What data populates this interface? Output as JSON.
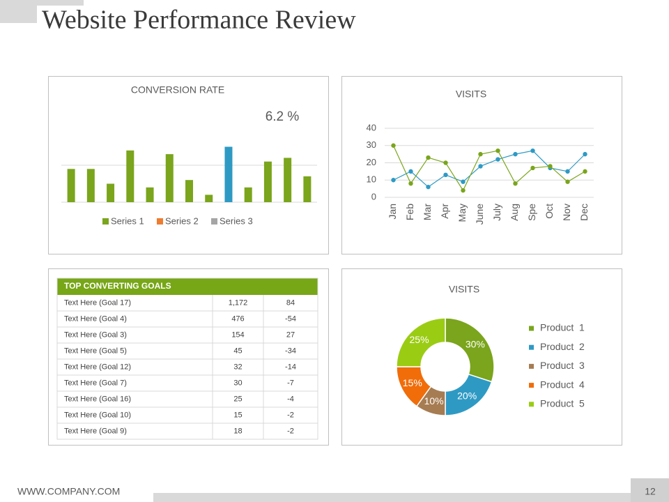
{
  "title": "Website Performance Review",
  "footer": {
    "website": "WWW.COMPANY.COM",
    "page": "12"
  },
  "chart_data": [
    {
      "type": "bar",
      "title": "CONVERSION RATE",
      "annotation": "6.2 %",
      "categories": [
        null,
        null,
        null,
        null,
        null,
        null,
        null,
        null,
        null,
        null,
        null,
        null,
        null
      ],
      "series": [
        {
          "name": "Series 1",
          "color": "#7aa51c",
          "values": [
            4.5,
            4.5,
            2.5,
            7,
            2,
            6.5,
            3,
            1,
            7.5,
            2,
            5.5,
            6,
            3.5
          ],
          "point_colors": [
            "#7aa51c",
            "#7aa51c",
            "#7aa51c",
            "#7aa51c",
            "#7aa51c",
            "#7aa51c",
            "#7aa51c",
            "#7aa51c",
            "#2e9ac4",
            "#7aa51c",
            "#7aa51c",
            "#7aa51c",
            "#7aa51c"
          ]
        },
        {
          "name": "Series 2",
          "color": "#ed7d31",
          "values": [
            null,
            null,
            null,
            null,
            null,
            null,
            null,
            null,
            null,
            null,
            null,
            null,
            null
          ]
        },
        {
          "name": "Series 3",
          "color": "#a5a5a5",
          "values": [
            null,
            null,
            null,
            null,
            null,
            null,
            null,
            null,
            null,
            null,
            null,
            null,
            null
          ]
        }
      ],
      "ylim": [
        0,
        10
      ],
      "grid_lines": [
        0,
        5
      ]
    },
    {
      "type": "line",
      "title": "VISITS",
      "categories": [
        "Jan",
        "Feb",
        "Mar",
        "Apr",
        "May",
        "June",
        "July",
        "Aug",
        "Spe",
        "Oct",
        "Nov",
        "Dec"
      ],
      "series": [
        {
          "color": "#2e9ac4",
          "values": [
            10,
            15,
            6,
            13,
            9,
            18,
            22,
            25,
            27,
            17,
            15,
            25
          ]
        },
        {
          "color": "#7aa51c",
          "values": [
            30,
            8,
            23,
            20,
            4,
            25,
            27,
            8,
            17,
            18,
            9,
            15
          ]
        }
      ],
      "ylim": [
        0,
        40
      ],
      "yticks": [
        0,
        10,
        20,
        30,
        40
      ],
      "grid": true
    },
    {
      "type": "donut",
      "title": "VISITS",
      "categories": [
        "Product  1",
        "Product  2",
        "Product  3",
        "Product  4",
        "Product  5"
      ],
      "values": [
        30,
        20,
        10,
        15,
        25
      ],
      "value_labels": [
        "30%",
        "20%",
        "10%",
        "15%",
        "25%"
      ],
      "colors": [
        "#7aa51c",
        "#2e9ac4",
        "#a67c52",
        "#f06d0a",
        "#9bcc14"
      ]
    }
  ],
  "table": {
    "header": "TOP CONVERTING GOALS",
    "rows": [
      [
        "Text Here (Goal 17)",
        "1,172",
        "84"
      ],
      [
        "Text Here (Goal 4)",
        "476",
        "-54"
      ],
      [
        "Text Here (Goal 3)",
        "154",
        "27"
      ],
      [
        "Text Here (Goal 5)",
        "45",
        "-34"
      ],
      [
        "Text Here (Goal 12)",
        "32",
        "-14"
      ],
      [
        "Text Here (Goal 7)",
        "30",
        "-7"
      ],
      [
        "Text Here (Goal 16)",
        "25",
        "-4"
      ],
      [
        "Text Here (Goal 10)",
        "15",
        "-2"
      ],
      [
        "Text Here (Goal 9)",
        "18",
        "-2"
      ]
    ]
  }
}
